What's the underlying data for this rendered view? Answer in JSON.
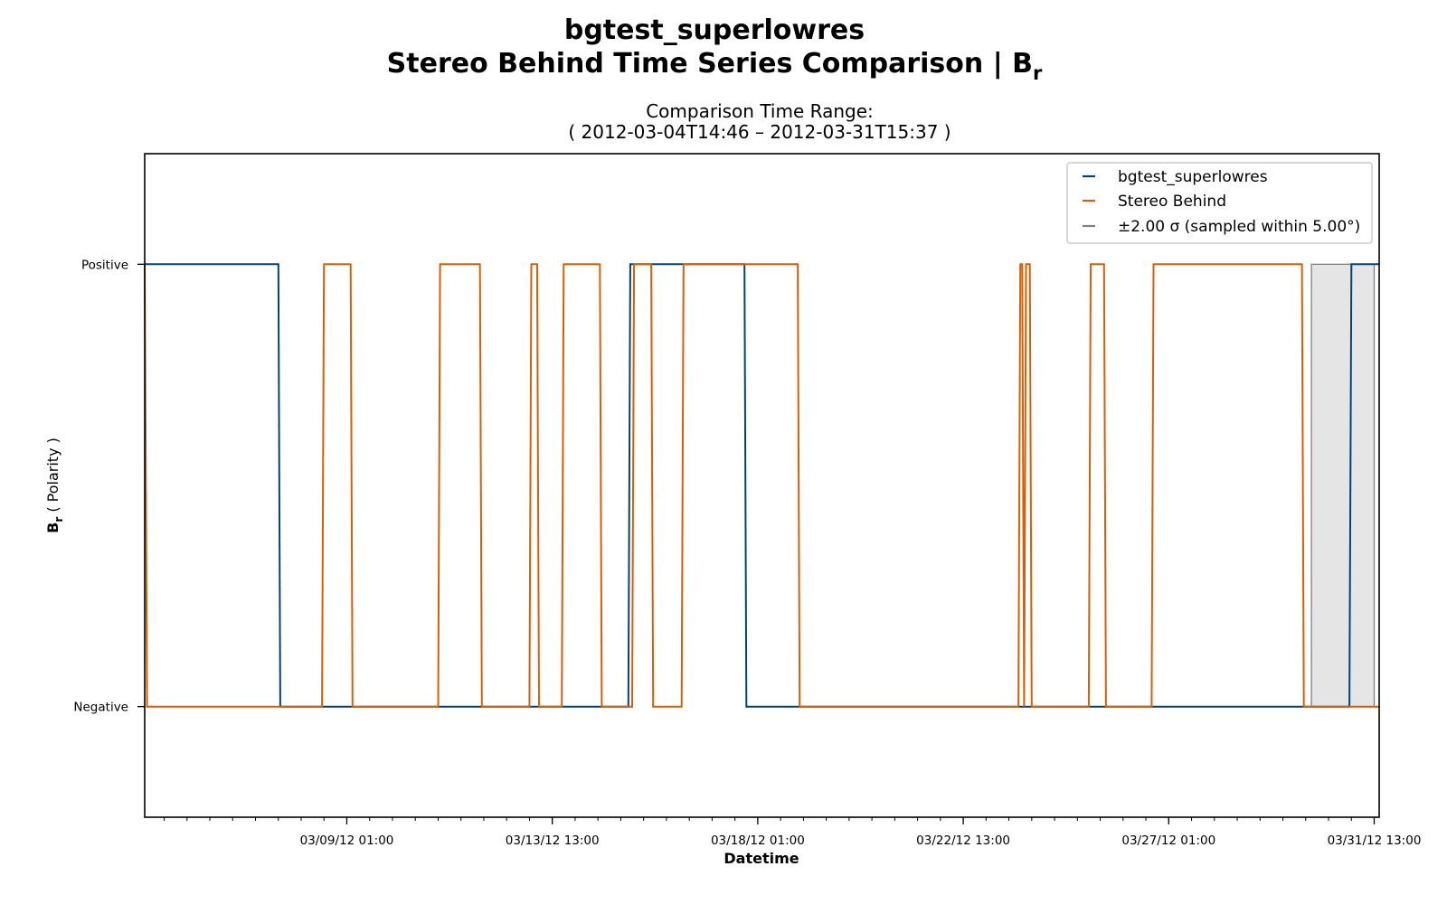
{
  "chart_data": {
    "type": "line",
    "title_line1": "bgtest_superlowres",
    "title_line2": "Stereo Behind Time Series Comparison | B",
    "title_sub": "r",
    "subtitle_line1": "Comparison Time Range:",
    "subtitle_line2": "( 2012-03-04T14:46 – 2012-03-31T15:37 )",
    "xlabel": "Datetime",
    "ylabel_main": "B",
    "ylabel_sub": "r",
    "ylabel_rest": " ( Polarity )",
    "xlim": [
      "2012-03-04T14:46",
      "2012-03-31T15:37"
    ],
    "x_ticks": [
      {
        "t": "2012-03-09T01:00",
        "label": "03/09/12 01:00"
      },
      {
        "t": "2012-03-13T13:00",
        "label": "03/13/12 13:00"
      },
      {
        "t": "2012-03-18T01:00",
        "label": "03/18/12 01:00"
      },
      {
        "t": "2012-03-22T13:00",
        "label": "03/22/12 13:00"
      },
      {
        "t": "2012-03-27T01:00",
        "label": "03/27/12 01:00"
      },
      {
        "t": "2012-03-31T13:00",
        "label": "03/31/12 13:00"
      }
    ],
    "ylim": [
      -1.5,
      1.5
    ],
    "y_ticks": [
      {
        "v": 1,
        "label": "Positive"
      },
      {
        "v": -1,
        "label": "Negative"
      }
    ],
    "legend_position": "upper-right",
    "series": [
      {
        "name": "bgtest_superlowres",
        "color": "#00437a",
        "points": [
          [
            "2012-03-04T14:46",
            1
          ],
          [
            "2012-03-07T13:00",
            1
          ],
          [
            "2012-03-07T14:00",
            -1
          ],
          [
            "2012-03-15T05:00",
            -1
          ],
          [
            "2012-03-15T06:00",
            1
          ],
          [
            "2012-03-17T18:00",
            1
          ],
          [
            "2012-03-17T19:00",
            -1
          ],
          [
            "2012-03-31T00:00",
            -1
          ],
          [
            "2012-03-31T01:00",
            1
          ],
          [
            "2012-03-31T15:37",
            1
          ]
        ]
      },
      {
        "name": "Stereo Behind",
        "color": "#d95f02",
        "points": [
          [
            "2012-03-04T14:46",
            1
          ],
          [
            "2012-03-04T16:00",
            -1
          ],
          [
            "2012-03-08T12:00",
            -1
          ],
          [
            "2012-03-08T13:00",
            1
          ],
          [
            "2012-03-09T03:00",
            1
          ],
          [
            "2012-03-09T04:00",
            -1
          ],
          [
            "2012-03-11T01:00",
            -1
          ],
          [
            "2012-03-11T02:00",
            1
          ],
          [
            "2012-03-11T23:00",
            1
          ],
          [
            "2012-03-12T00:00",
            -1
          ],
          [
            "2012-03-13T01:00",
            -1
          ],
          [
            "2012-03-13T02:00",
            1
          ],
          [
            "2012-03-13T05:00",
            1
          ],
          [
            "2012-03-13T06:00",
            -1
          ],
          [
            "2012-03-13T18:00",
            -1
          ],
          [
            "2012-03-13T19:00",
            1
          ],
          [
            "2012-03-14T14:00",
            1
          ],
          [
            "2012-03-14T15:00",
            -1
          ],
          [
            "2012-03-15T07:00",
            -1
          ],
          [
            "2012-03-15T08:00",
            1
          ],
          [
            "2012-03-15T17:00",
            1
          ],
          [
            "2012-03-15T18:00",
            -1
          ],
          [
            "2012-03-16T09:00",
            -1
          ],
          [
            "2012-03-16T10:00",
            1
          ],
          [
            "2012-03-18T22:00",
            1
          ],
          [
            "2012-03-18T23:00",
            -1
          ],
          [
            "2012-03-23T18:00",
            -1
          ],
          [
            "2012-03-23T19:00",
            1
          ],
          [
            "2012-03-23T20:00",
            1
          ],
          [
            "2012-03-23T21:00",
            -1
          ],
          [
            "2012-03-23T22:00",
            1
          ],
          [
            "2012-03-24T00:00",
            1
          ],
          [
            "2012-03-24T01:00",
            -1
          ],
          [
            "2012-03-25T07:00",
            -1
          ],
          [
            "2012-03-25T08:00",
            1
          ],
          [
            "2012-03-25T15:00",
            1
          ],
          [
            "2012-03-25T16:00",
            -1
          ],
          [
            "2012-03-26T16:00",
            -1
          ],
          [
            "2012-03-26T17:00",
            1
          ],
          [
            "2012-03-29T23:00",
            1
          ],
          [
            "2012-03-30T00:00",
            -1
          ],
          [
            "2012-03-31T15:37",
            -1
          ]
        ]
      }
    ],
    "sigma_band": {
      "label": "±2.00 σ (sampled within 5.00°)",
      "color": "#808080",
      "fill": "#e5e5e5",
      "x_start": "2012-03-30T04:00",
      "x_end": "2012-03-31T13:00",
      "y_low": -1,
      "y_high": 1
    }
  }
}
